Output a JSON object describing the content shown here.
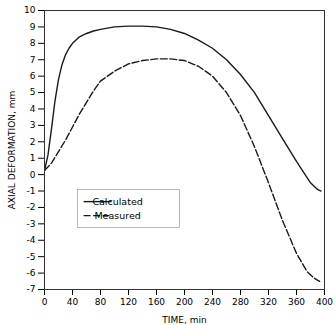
{
  "chart_data": {
    "type": "line",
    "xlabel": "TIME, min",
    "ylabel": "AXIAL DEFORMATION, mm",
    "series": [
      {
        "name": "Calculated",
        "color": "#1a1a1a",
        "line_style": "solid",
        "x": [
          0,
          5,
          10,
          15,
          20,
          25,
          30,
          35,
          40,
          50,
          60,
          70,
          80,
          100,
          120,
          140,
          160,
          180,
          200,
          220,
          240,
          260,
          280,
          300,
          320,
          340,
          360,
          380,
          390,
          395
        ],
        "values": [
          0.25,
          1.2,
          2.8,
          4.5,
          5.8,
          6.7,
          7.3,
          7.7,
          8.0,
          8.4,
          8.6,
          8.75,
          8.85,
          9.0,
          9.05,
          9.05,
          9.0,
          8.85,
          8.6,
          8.2,
          7.7,
          7.0,
          6.1,
          5.0,
          3.6,
          2.2,
          0.8,
          -0.5,
          -0.9,
          -1.0
        ]
      },
      {
        "name": "Measured",
        "color": "#1a1a1a",
        "line_style": "dashed",
        "x": [
          0,
          10,
          20,
          30,
          40,
          50,
          60,
          70,
          80,
          100,
          120,
          140,
          160,
          180,
          200,
          220,
          240,
          260,
          280,
          300,
          320,
          340,
          360,
          375,
          385,
          393
        ],
        "values": [
          0.25,
          0.7,
          1.4,
          2.1,
          2.9,
          3.7,
          4.4,
          5.1,
          5.7,
          6.3,
          6.75,
          6.95,
          7.05,
          7.05,
          6.95,
          6.6,
          6.0,
          5.0,
          3.6,
          1.7,
          -0.5,
          -2.8,
          -4.8,
          -5.9,
          -6.3,
          -6.5
        ]
      }
    ],
    "xlim": [
      0,
      400
    ],
    "ylim": [
      -7,
      10
    ],
    "xticks": [
      0,
      40,
      80,
      120,
      160,
      200,
      240,
      280,
      320,
      360,
      400
    ],
    "yticks": [
      -7,
      -6,
      -5,
      -4,
      -3,
      -2,
      -1,
      0,
      1,
      2,
      3,
      4,
      5,
      6,
      7,
      8,
      9,
      10
    ],
    "grid": false,
    "legend": "lower left"
  }
}
